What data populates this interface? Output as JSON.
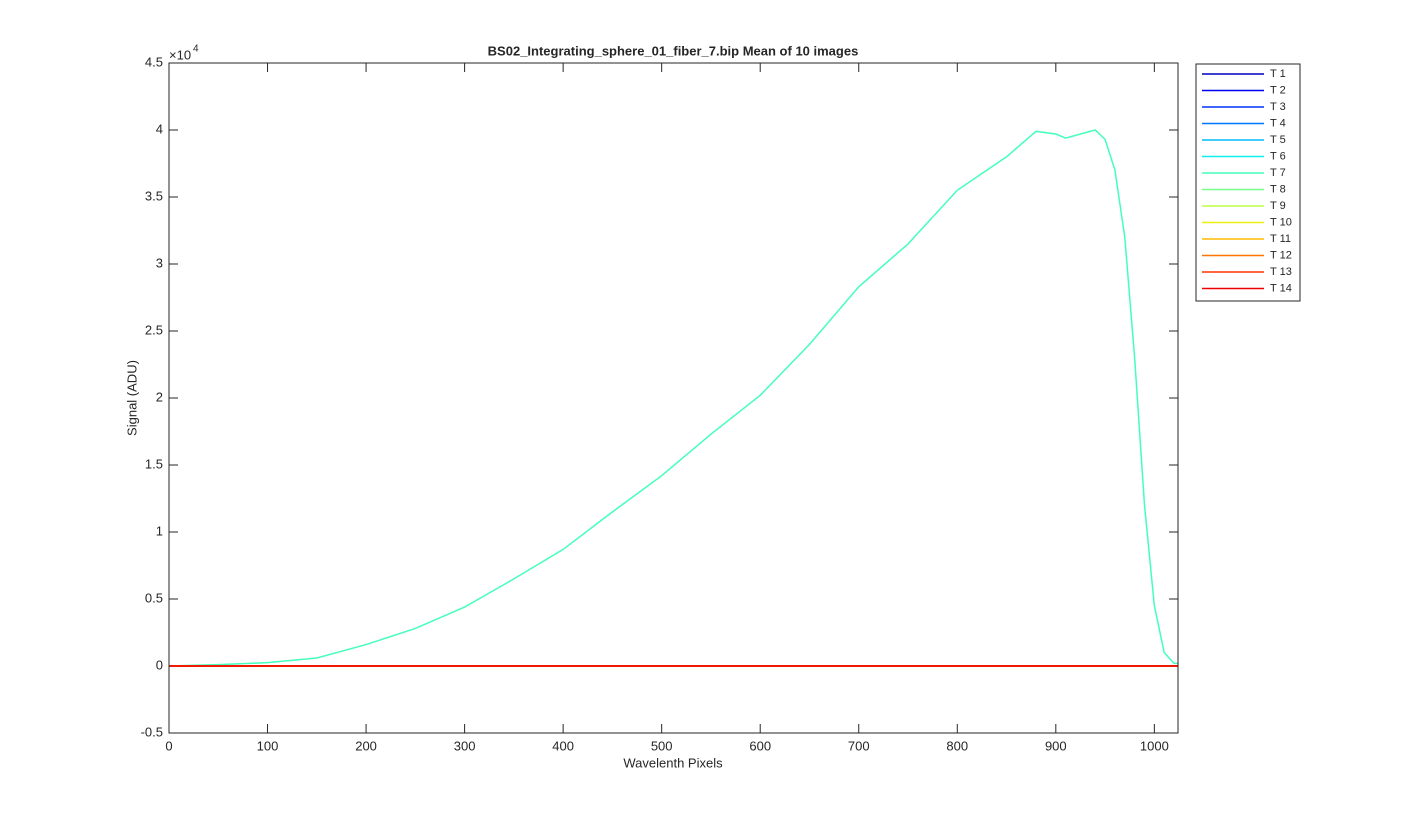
{
  "chart_data": {
    "type": "line",
    "title": "BS02_Integrating_sphere_01_fiber_7.bip  Mean of 10 images",
    "x_label": "Wavelenth Pixels",
    "y_label": "Signal (ADU)",
    "y_multiplier": "×10",
    "y_multiplier_exponent": "4",
    "xlim": [
      0,
      1024
    ],
    "ylim": [
      -0.5,
      4.5
    ],
    "xticks": [
      0,
      100,
      200,
      300,
      400,
      500,
      600,
      700,
      800,
      900,
      1000
    ],
    "yticks": [
      -0.5,
      0,
      0.5,
      1,
      1.5,
      2,
      2.5,
      3,
      3.5,
      4,
      4.5
    ],
    "legend": "outside-top-right",
    "x": [
      0,
      50,
      100,
      150,
      200,
      250,
      300,
      350,
      400,
      450,
      500,
      550,
      600,
      650,
      700,
      750,
      800,
      850,
      880,
      900,
      910,
      940,
      950,
      960,
      970,
      980,
      990,
      1000,
      1010,
      1020,
      1024
    ],
    "series": [
      {
        "name": "T 1",
        "color": "#0000bf",
        "values": [
          0,
          0,
          0,
          0,
          0,
          0,
          0,
          0,
          0,
          0,
          0,
          0,
          0,
          0,
          0,
          0,
          0,
          0,
          0,
          0,
          0,
          0,
          0,
          0,
          0,
          0,
          0,
          0,
          0,
          0,
          0
        ]
      },
      {
        "name": "T 2",
        "color": "#0000f0",
        "values": [
          0,
          0,
          0,
          0,
          0,
          0,
          0,
          0,
          0,
          0,
          0,
          0,
          0,
          0,
          0,
          0,
          0,
          0,
          0,
          0,
          0,
          0,
          0,
          0,
          0,
          0,
          0,
          0,
          0,
          0,
          0
        ]
      },
      {
        "name": "T 3",
        "color": "#0033ff",
        "values": [
          0,
          0,
          0,
          0,
          0,
          0,
          0,
          0,
          0,
          0,
          0,
          0,
          0,
          0,
          0,
          0,
          0,
          0,
          0,
          0,
          0,
          0,
          0,
          0,
          0,
          0,
          0,
          0,
          0,
          0,
          0
        ]
      },
      {
        "name": "T 4",
        "color": "#0077ff",
        "values": [
          0,
          0,
          0,
          0,
          0,
          0,
          0,
          0,
          0,
          0,
          0,
          0,
          0,
          0,
          0,
          0,
          0,
          0,
          0,
          0,
          0,
          0,
          0,
          0,
          0,
          0,
          0,
          0,
          0,
          0,
          0
        ]
      },
      {
        "name": "T 5",
        "color": "#00bbff",
        "values": [
          0,
          0,
          0,
          0,
          0,
          0,
          0,
          0,
          0,
          0,
          0,
          0,
          0,
          0,
          0,
          0,
          0,
          0,
          0,
          0,
          0,
          0,
          0,
          0,
          0,
          0,
          0,
          0,
          0,
          0,
          0
        ]
      },
      {
        "name": "T 6",
        "color": "#11eeee",
        "values": [
          0,
          0,
          0,
          0,
          0,
          0,
          0,
          0,
          0,
          0,
          0,
          0,
          0,
          0,
          0,
          0,
          0,
          0,
          0,
          0,
          0,
          0,
          0,
          0,
          0,
          0,
          0,
          0,
          0,
          0,
          0
        ]
      },
      {
        "name": "T 7",
        "color": "#44ffbb",
        "values": [
          0,
          0.01,
          0.025,
          0.06,
          0.16,
          0.28,
          0.44,
          0.65,
          0.87,
          1.15,
          1.42,
          1.73,
          2.02,
          2.4,
          2.83,
          3.15,
          3.55,
          3.8,
          3.99,
          3.97,
          3.94,
          4.0,
          3.93,
          3.7,
          3.2,
          2.3,
          1.2,
          0.45,
          0.1,
          0.02,
          0.02
        ]
      },
      {
        "name": "T 8",
        "color": "#77ff88",
        "values": [
          0,
          0,
          0,
          0,
          0,
          0,
          0,
          0,
          0,
          0,
          0,
          0,
          0,
          0,
          0,
          0,
          0,
          0,
          0,
          0,
          0,
          0,
          0,
          0,
          0,
          0,
          0,
          0,
          0,
          0,
          0
        ]
      },
      {
        "name": "T 9",
        "color": "#bbff44",
        "values": [
          0,
          0,
          0,
          0,
          0,
          0,
          0,
          0,
          0,
          0,
          0,
          0,
          0,
          0,
          0,
          0,
          0,
          0,
          0,
          0,
          0,
          0,
          0,
          0,
          0,
          0,
          0,
          0,
          0,
          0,
          0
        ]
      },
      {
        "name": "T 10",
        "color": "#eeee11",
        "values": [
          0,
          0,
          0,
          0,
          0,
          0,
          0,
          0,
          0,
          0,
          0,
          0,
          0,
          0,
          0,
          0,
          0,
          0,
          0,
          0,
          0,
          0,
          0,
          0,
          0,
          0,
          0,
          0,
          0,
          0,
          0
        ]
      },
      {
        "name": "T 11",
        "color": "#ffbb00",
        "values": [
          0,
          0,
          0,
          0,
          0,
          0,
          0,
          0,
          0,
          0,
          0,
          0,
          0,
          0,
          0,
          0,
          0,
          0,
          0,
          0,
          0,
          0,
          0,
          0,
          0,
          0,
          0,
          0,
          0,
          0,
          0
        ]
      },
      {
        "name": "T 12",
        "color": "#ff7700",
        "values": [
          0,
          0,
          0,
          0,
          0,
          0,
          0,
          0,
          0,
          0,
          0,
          0,
          0,
          0,
          0,
          0,
          0,
          0,
          0,
          0,
          0,
          0,
          0,
          0,
          0,
          0,
          0,
          0,
          0,
          0,
          0
        ]
      },
      {
        "name": "T 13",
        "color": "#ff3300",
        "values": [
          0,
          0,
          0,
          0,
          0,
          0,
          0,
          0,
          0,
          0,
          0,
          0,
          0,
          0,
          0,
          0,
          0,
          0,
          0,
          0,
          0,
          0,
          0,
          0,
          0,
          0,
          0,
          0,
          0,
          0,
          0
        ]
      },
      {
        "name": "T 14",
        "color": "#ee0000",
        "values": [
          0,
          0,
          0,
          0,
          0,
          0,
          0,
          0,
          0,
          0,
          0,
          0,
          0,
          0,
          0,
          0,
          0,
          0,
          0,
          0,
          0,
          0,
          0,
          0,
          0,
          0,
          0,
          0,
          0,
          0,
          0
        ]
      }
    ]
  }
}
